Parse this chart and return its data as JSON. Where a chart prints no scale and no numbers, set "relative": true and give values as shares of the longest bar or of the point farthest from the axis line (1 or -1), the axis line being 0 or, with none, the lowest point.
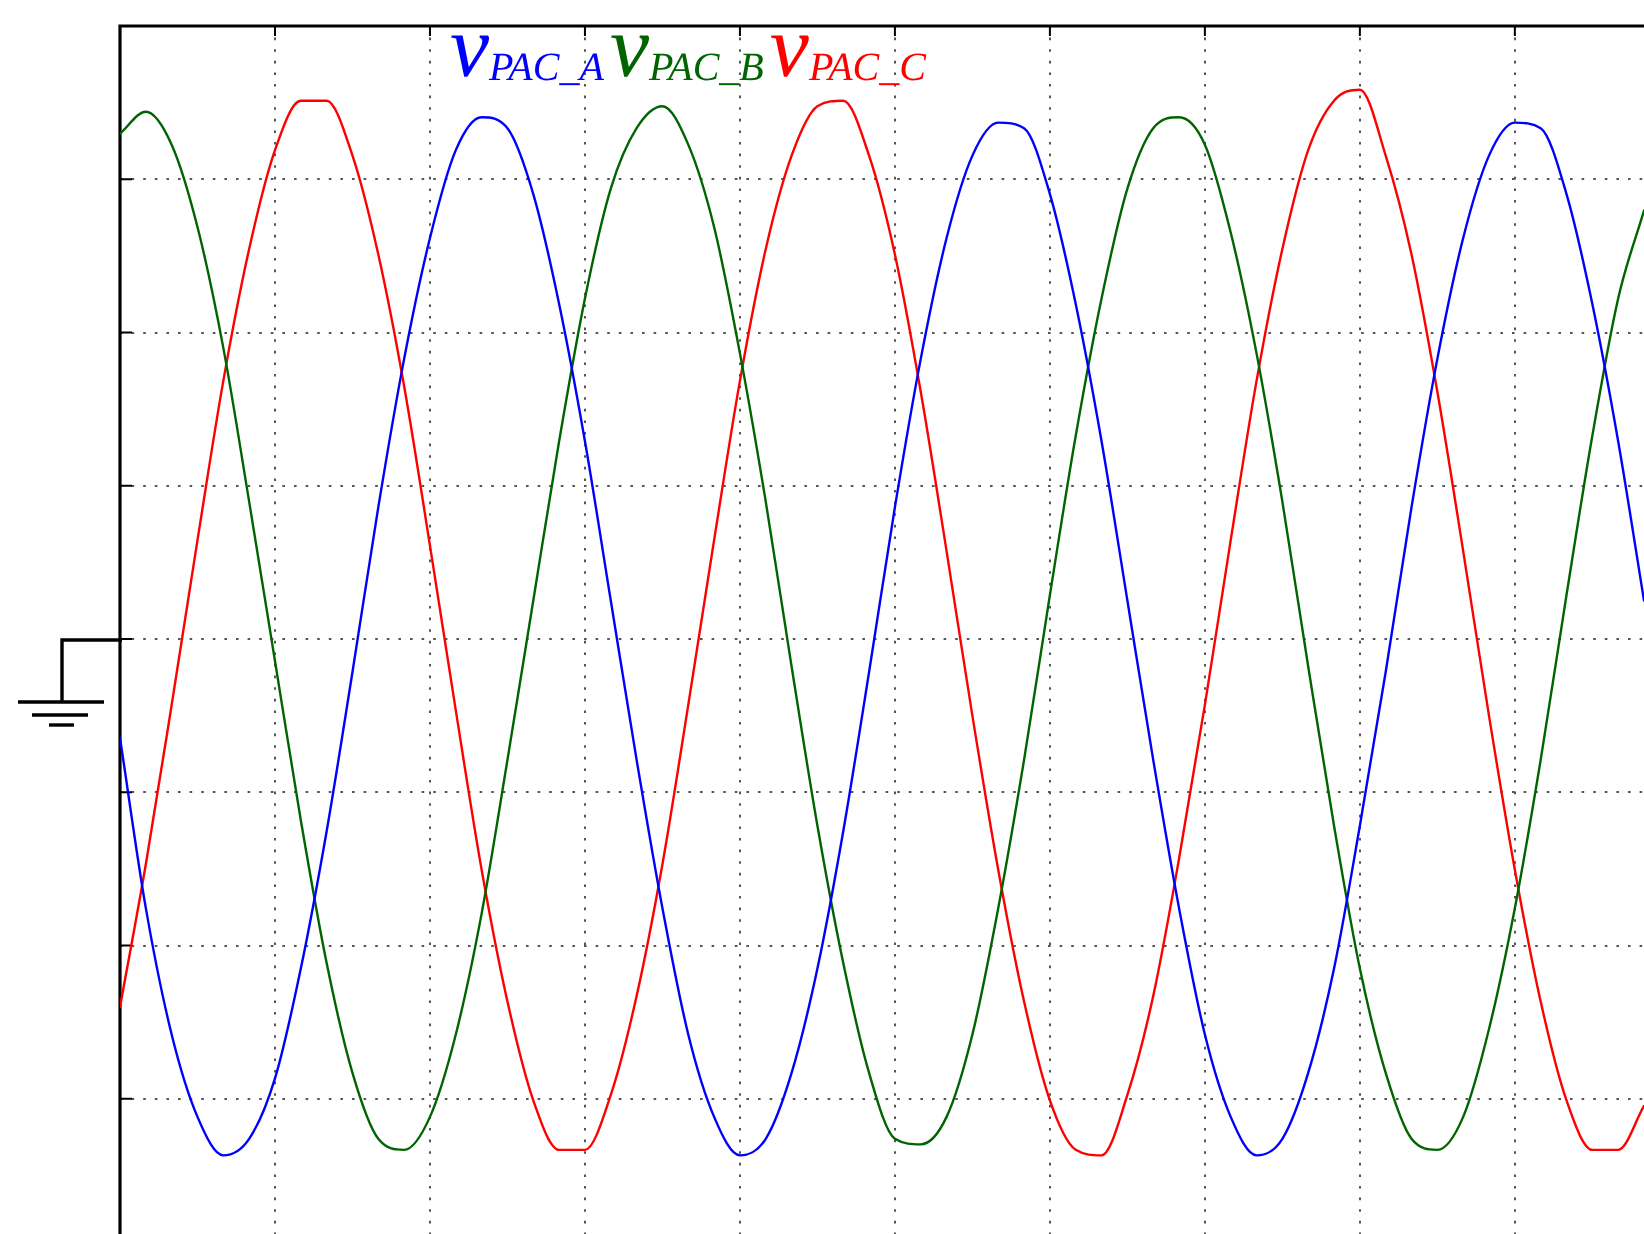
{
  "chart_data": {
    "type": "line",
    "relative": true,
    "grid": true,
    "legend": "top",
    "marker": "none",
    "line_style": "solid",
    "categories": [
      null,
      null,
      null,
      null,
      null,
      null,
      null,
      null,
      null,
      null,
      null,
      null,
      null,
      null,
      null,
      null,
      null,
      null,
      null,
      null,
      null,
      null,
      null,
      null,
      null,
      null,
      null,
      null,
      null,
      null,
      null,
      null,
      null,
      null,
      null,
      null,
      null,
      null,
      null,
      null,
      null,
      null,
      null,
      null,
      null,
      null,
      null,
      null,
      null,
      null,
      null,
      null,
      null,
      null,
      null,
      null,
      null,
      null,
      null,
      null
    ],
    "series": [
      {
        "name": "v$_{PAC_A}$",
        "color": "#0000ff",
        "values": [
          -0.18,
          -0.49,
          -0.72,
          -0.87,
          -0.94,
          -0.91,
          -0.8,
          -0.6,
          -0.35,
          -0.06,
          0.24,
          0.51,
          0.73,
          0.89,
          0.95,
          0.93,
          0.81,
          0.61,
          0.36,
          0.07,
          -0.22,
          -0.49,
          -0.72,
          -0.87,
          -0.94,
          -0.91,
          -0.79,
          -0.6,
          -0.35,
          -0.06,
          0.24,
          0.51,
          0.73,
          0.88,
          0.94,
          0.93,
          0.81,
          0.61,
          0.36,
          0.07,
          -0.22,
          -0.49,
          -0.72,
          -0.87,
          -0.94,
          -0.91,
          -0.79,
          -0.6,
          -0.34,
          -0.06,
          0.24,
          0.51,
          0.73,
          0.88,
          0.94,
          0.93,
          0.81,
          0.61,
          0.36,
          0.07
        ]
      },
      {
        "name": "v$_{PAC_B}$",
        "color": "#006400",
        "values": [
          0.92,
          0.96,
          0.9,
          0.75,
          0.53,
          0.25,
          -0.04,
          -0.33,
          -0.59,
          -0.79,
          -0.91,
          -0.93,
          -0.87,
          -0.72,
          -0.5,
          -0.22,
          0.07,
          0.36,
          0.62,
          0.82,
          0.93,
          0.97,
          0.9,
          0.75,
          0.52,
          0.25,
          -0.05,
          -0.34,
          -0.59,
          -0.79,
          -0.91,
          -0.92,
          -0.87,
          -0.72,
          -0.49,
          -0.22,
          0.08,
          0.37,
          0.62,
          0.82,
          0.93,
          0.95,
          0.9,
          0.74,
          0.52,
          0.25,
          -0.05,
          -0.34,
          -0.6,
          -0.79,
          -0.91,
          -0.93,
          -0.87,
          -0.71,
          -0.49,
          -0.22,
          0.08,
          0.37,
          0.62,
          0.78
        ]
      },
      {
        "name": "v$_{PAC_C}$",
        "color": "#ff0000",
        "values": [
          -0.67,
          -0.41,
          -0.12,
          0.18,
          0.47,
          0.71,
          0.89,
          0.98,
          0.98,
          0.88,
          0.7,
          0.46,
          0.17,
          -0.13,
          -0.42,
          -0.66,
          -0.84,
          -0.93,
          -0.93,
          -0.83,
          -0.65,
          -0.41,
          -0.12,
          0.18,
          0.47,
          0.71,
          0.88,
          0.97,
          0.98,
          0.88,
          0.7,
          0.45,
          0.16,
          -0.14,
          -0.42,
          -0.66,
          -0.84,
          -0.93,
          -0.94,
          -0.83,
          -0.65,
          -0.4,
          -0.12,
          0.18,
          0.47,
          0.71,
          0.89,
          0.98,
          1.0,
          0.88,
          0.7,
          0.45,
          0.16,
          -0.14,
          -0.42,
          -0.66,
          -0.84,
          -0.93,
          -0.93,
          -0.85
        ]
      }
    ]
  }
}
